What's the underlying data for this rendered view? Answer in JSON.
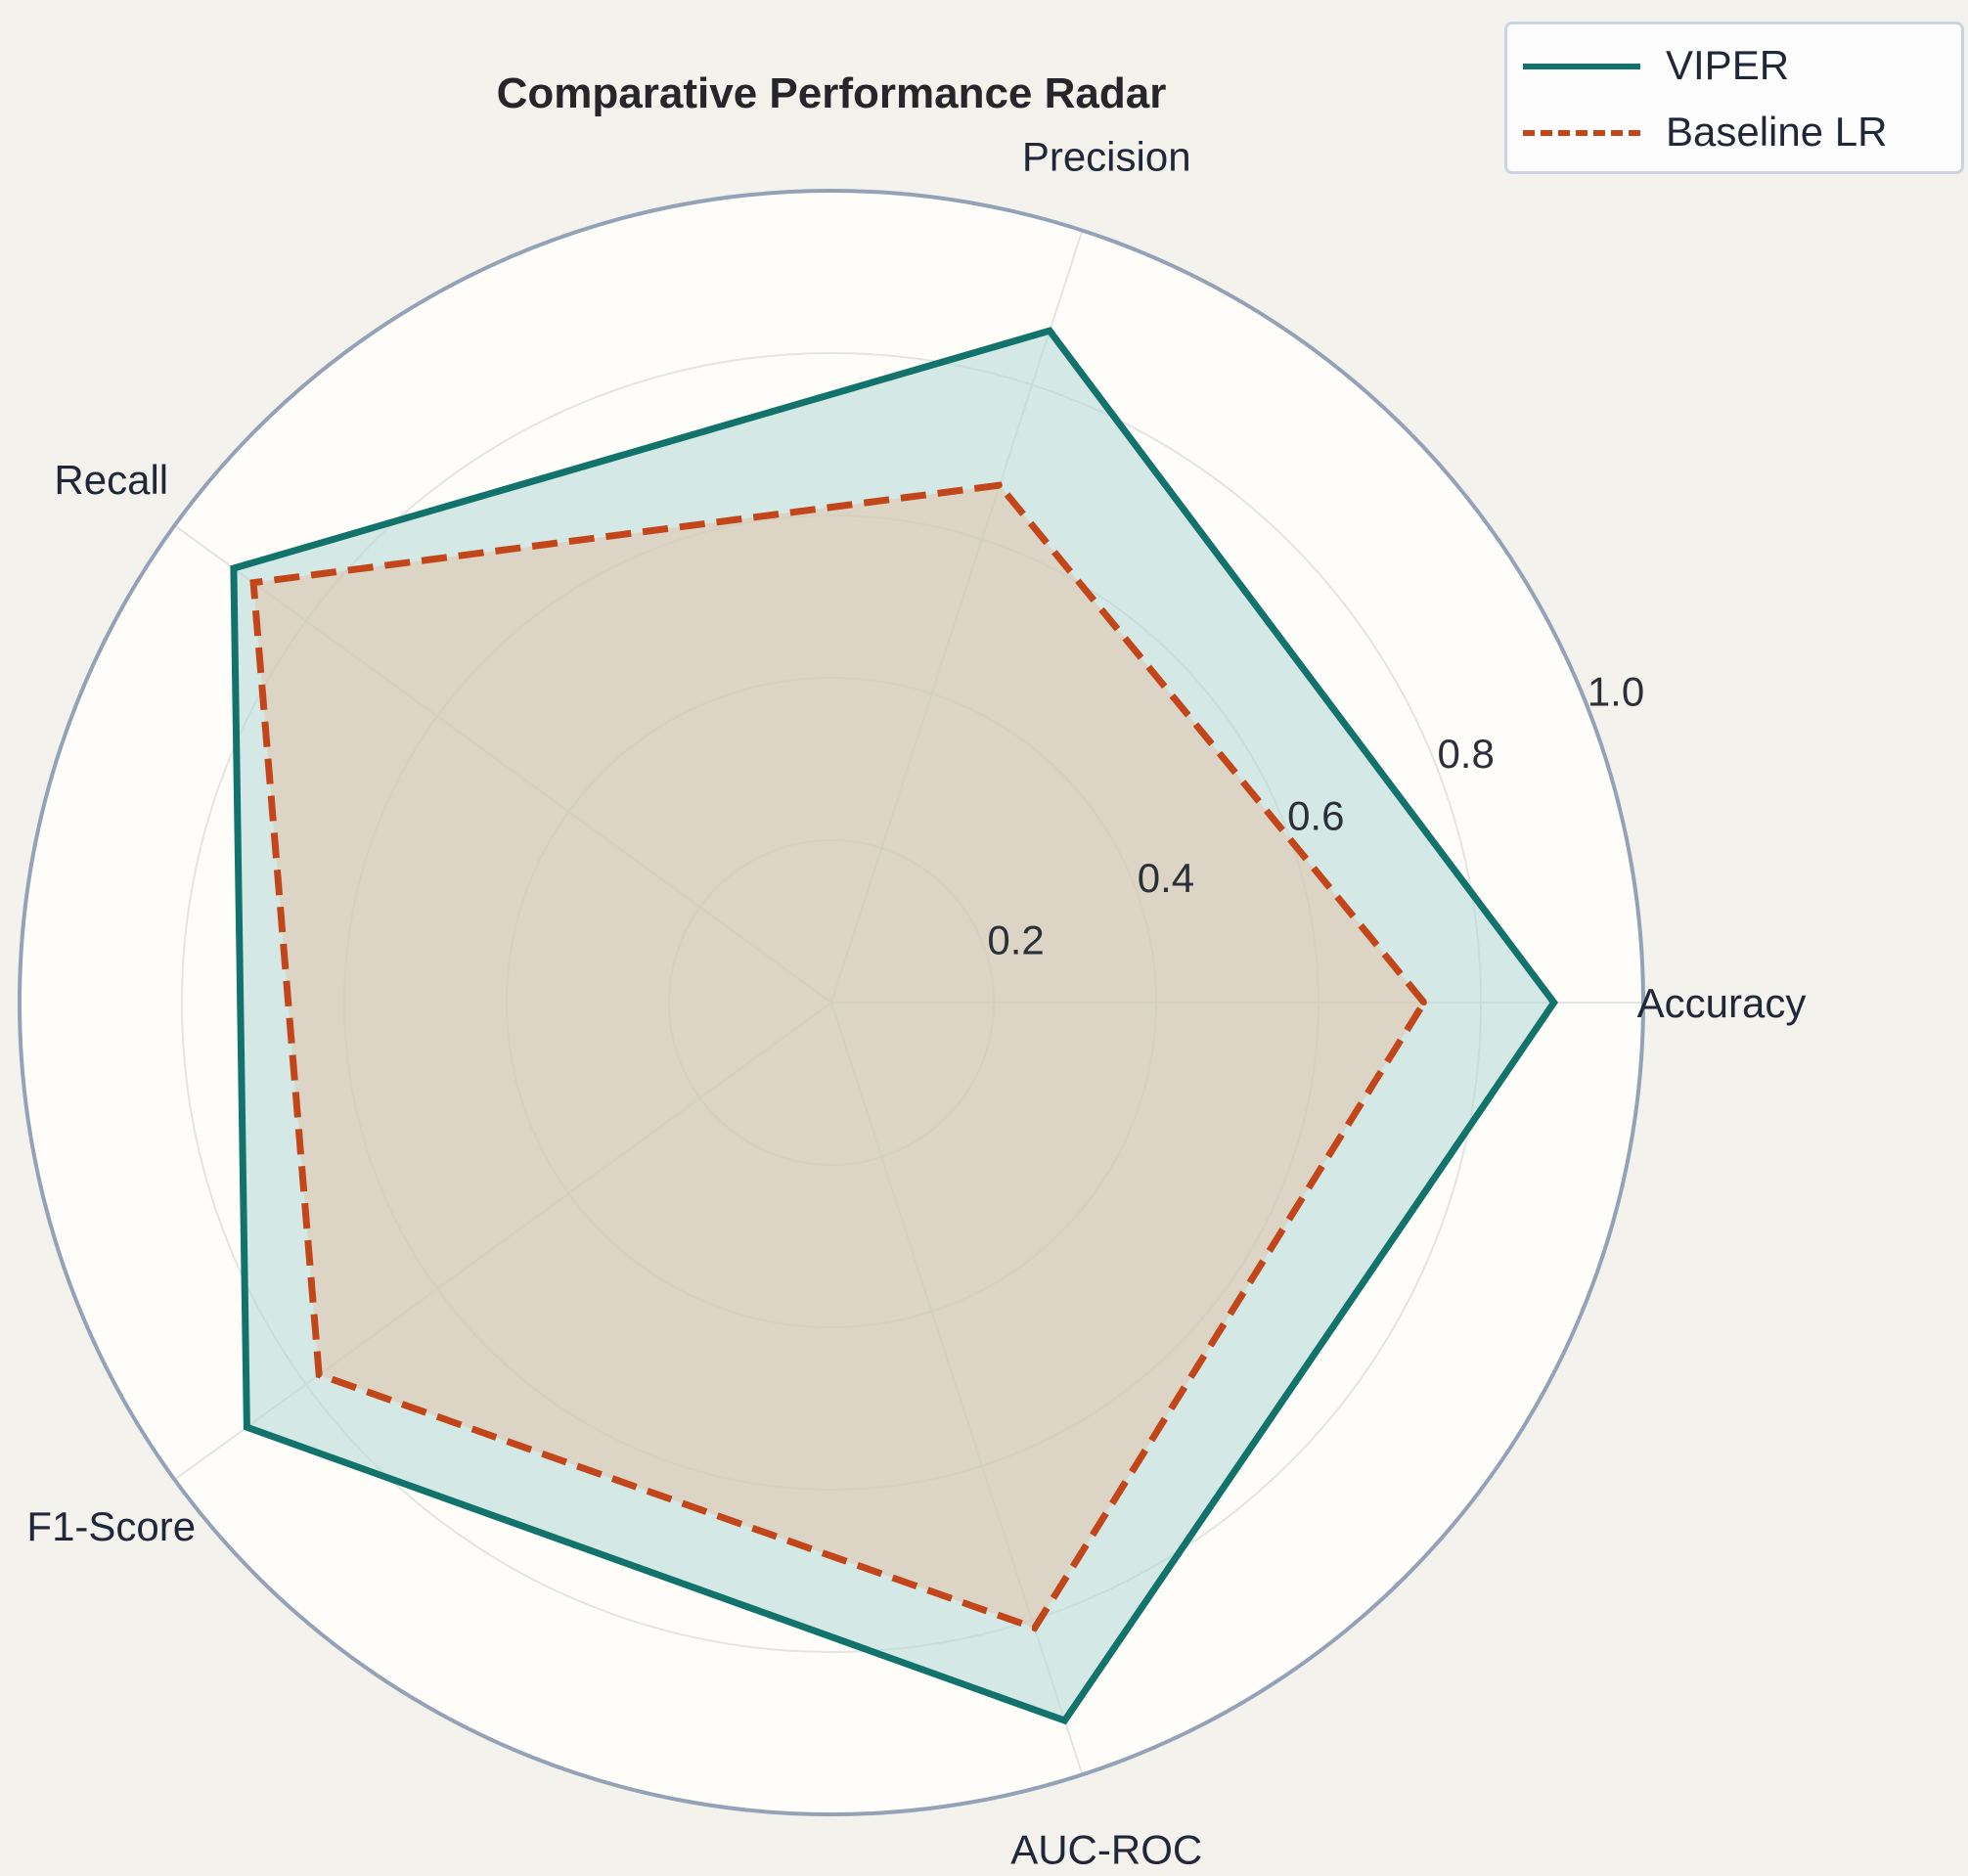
{
  "chart_data": {
    "type": "radar",
    "title": "Comparative Performance Radar",
    "axes": [
      "Accuracy",
      "Precision",
      "Recall",
      "F1-Score",
      "AUC-ROC"
    ],
    "rlim": [
      0,
      1.0
    ],
    "r_ticks": [
      0.2,
      0.4,
      0.6,
      0.8,
      1.0
    ],
    "r_tick_labels": [
      "0.2",
      "0.4",
      "0.6",
      "0.8",
      "1.0"
    ],
    "grid": true,
    "legend_position": "top-right",
    "series": [
      {
        "name": "VIPER",
        "values": [
          0.89,
          0.87,
          0.91,
          0.89,
          0.93
        ],
        "color": "#11736b",
        "line_style": "solid",
        "fill_color": "#b7dbd7"
      },
      {
        "name": "Baseline LR",
        "values": [
          0.73,
          0.67,
          0.88,
          0.78,
          0.81
        ],
        "color": "#c3461a",
        "line_style": "dashed",
        "fill_color": "#e4c1a6"
      }
    ]
  },
  "legend": {
    "entries": [
      {
        "label": "VIPER"
      },
      {
        "label": "Baseline LR"
      }
    ]
  }
}
